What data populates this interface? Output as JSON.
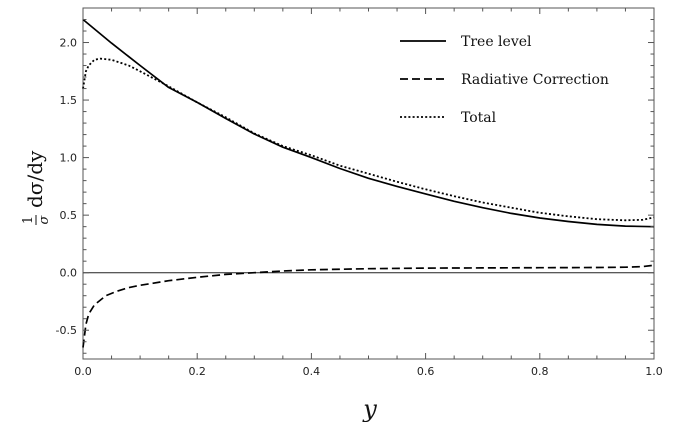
{
  "chart_data": {
    "type": "line",
    "title": "",
    "xlabel": "y",
    "ylabel": "(1/σ) dσ/dy",
    "ylabel_parts": {
      "numerator": "1",
      "denominator": "σ",
      "rest": "dσ/dy"
    },
    "xlim": [
      0,
      1
    ],
    "ylim": [
      -0.75,
      2.3
    ],
    "x_ticks": [
      0.0,
      0.2,
      0.4,
      0.6,
      0.8,
      1.0
    ],
    "x_tick_labels": [
      "0.0",
      "0.2",
      "0.4",
      "0.6",
      "0.8",
      "1.0"
    ],
    "y_ticks": [
      -0.5,
      0.0,
      0.5,
      1.0,
      1.5,
      2.0
    ],
    "y_tick_labels": [
      "-0.5",
      "0.0",
      "0.5",
      "1.0",
      "1.5",
      "2.0"
    ],
    "grid": false,
    "legend_position": "top-right",
    "zero_line": true,
    "series": [
      {
        "name": "Tree level",
        "style": "solid",
        "x": [
          0,
          0.05,
          0.1,
          0.15,
          0.2,
          0.25,
          0.3,
          0.35,
          0.4,
          0.45,
          0.5,
          0.55,
          0.6,
          0.65,
          0.7,
          0.75,
          0.8,
          0.85,
          0.9,
          0.95,
          1.0
        ],
        "y": [
          2.2,
          1.995,
          1.8,
          1.61,
          1.48,
          1.34,
          1.205,
          1.09,
          1.0,
          0.905,
          0.82,
          0.75,
          0.685,
          0.62,
          0.565,
          0.515,
          0.475,
          0.445,
          0.42,
          0.405,
          0.4
        ]
      },
      {
        "name": "Radiative Correction",
        "style": "dashed",
        "x": [
          0,
          0.005,
          0.01,
          0.02,
          0.04,
          0.06,
          0.08,
          0.1,
          0.15,
          0.2,
          0.25,
          0.3,
          0.35,
          0.4,
          0.5,
          0.6,
          0.7,
          0.8,
          0.9,
          0.95,
          0.98,
          1.0
        ],
        "y": [
          -0.65,
          -0.45,
          -0.36,
          -0.28,
          -0.2,
          -0.16,
          -0.13,
          -0.11,
          -0.07,
          -0.04,
          -0.015,
          0.0,
          0.015,
          0.025,
          0.035,
          0.04,
          0.042,
          0.043,
          0.045,
          0.048,
          0.053,
          0.065
        ]
      },
      {
        "name": "Total",
        "style": "dotted",
        "x": [
          0,
          0.005,
          0.01,
          0.02,
          0.03,
          0.05,
          0.08,
          0.1,
          0.15,
          0.2,
          0.25,
          0.3,
          0.35,
          0.4,
          0.45,
          0.5,
          0.55,
          0.6,
          0.65,
          0.7,
          0.75,
          0.8,
          0.85,
          0.9,
          0.95,
          0.98,
          1.0
        ],
        "y": [
          1.6,
          1.75,
          1.8,
          1.85,
          1.86,
          1.85,
          1.8,
          1.75,
          1.62,
          1.48,
          1.35,
          1.21,
          1.1,
          1.02,
          0.93,
          0.86,
          0.79,
          0.725,
          0.665,
          0.61,
          0.565,
          0.52,
          0.49,
          0.465,
          0.455,
          0.46,
          0.48
        ]
      }
    ]
  }
}
